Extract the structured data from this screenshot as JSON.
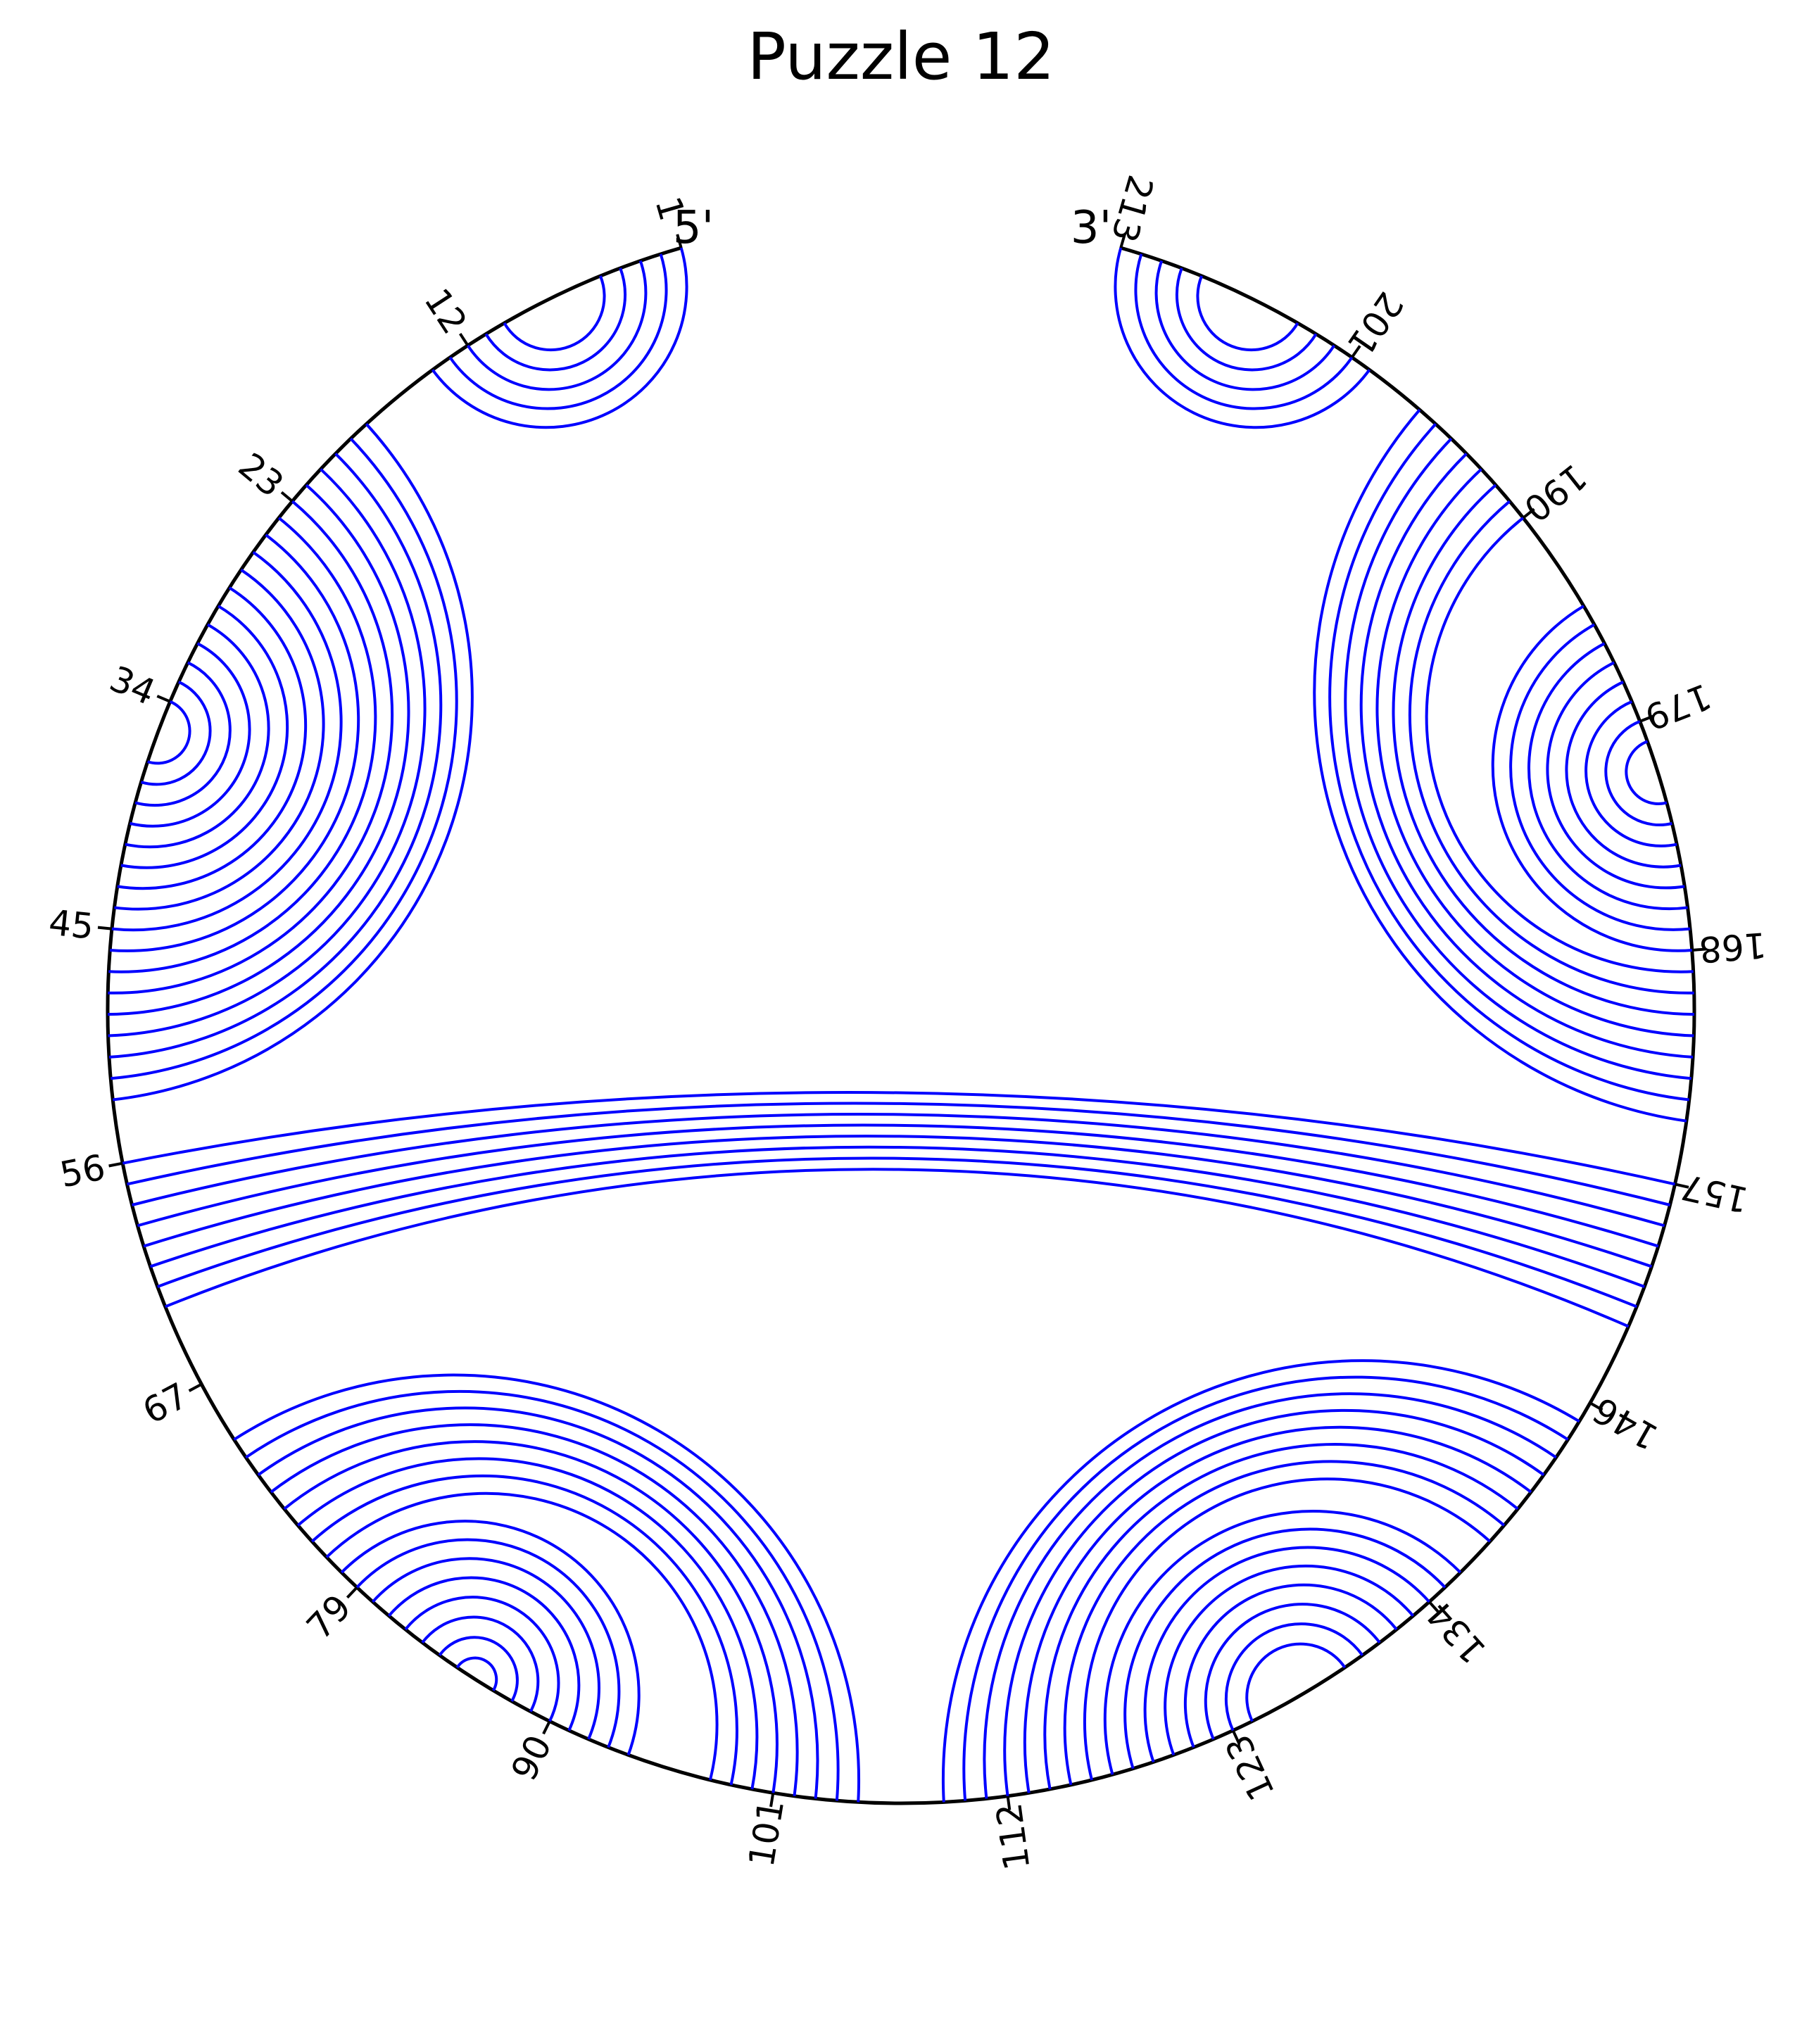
{
  "title": "Puzzle 12",
  "five_prime_label": "5'",
  "three_prime_label": "3'",
  "sequence_length": 213,
  "tick_positions": [
    1,
    12,
    23,
    34,
    45,
    56,
    67,
    79,
    90,
    101,
    112,
    123,
    134,
    146,
    157,
    168,
    179,
    190,
    201,
    213
  ],
  "tick_labels": [
    "1",
    "12",
    "23",
    "34",
    "45",
    "56",
    "67",
    "79",
    "90",
    "101",
    "112",
    "123",
    "134",
    "146",
    "157",
    "168",
    "179",
    "190",
    "201",
    "213"
  ],
  "helices": [
    {
      "i": 1,
      "j": 14,
      "length": 5
    },
    {
      "i": 18,
      "j": 53,
      "length": 8
    },
    {
      "i": 26,
      "j": 45,
      "length": 9
    },
    {
      "i": 56,
      "j": 157,
      "length": 8
    },
    {
      "i": 70,
      "j": 105,
      "length": 8
    },
    {
      "i": 78,
      "j": 94,
      "length": 8
    },
    {
      "i": 109,
      "j": 145,
      "length": 8
    },
    {
      "i": 117,
      "j": 136,
      "length": 8
    },
    {
      "i": 160,
      "j": 197,
      "length": 8
    },
    {
      "i": 168,
      "j": 185,
      "length": 8
    },
    {
      "i": 200,
      "j": 213,
      "length": 5
    }
  ],
  "colors": {
    "pair": "#0000ff",
    "backbone": "#000000",
    "text": "#000000"
  }
}
